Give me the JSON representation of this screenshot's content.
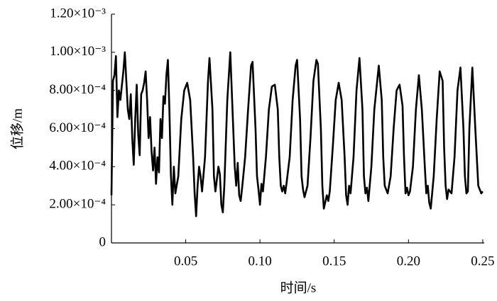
{
  "chart_data": {
    "type": "line",
    "xlabel": "时间/s",
    "ylabel": "位移/m",
    "x": [
      0,
      0.001,
      0.002,
      0.003,
      0.004,
      0.005,
      0.006,
      0.008,
      0.009,
      0.01,
      0.011,
      0.012,
      0.013,
      0.014,
      0.015,
      0.016,
      0.017,
      0.018,
      0.019,
      0.02,
      0.021,
      0.022,
      0.023,
      0.024,
      0.025,
      0.026,
      0.027,
      0.028,
      0.029,
      0.03,
      0.031,
      0.032,
      0.033,
      0.034,
      0.035,
      0.036,
      0.037,
      0.038,
      0.039,
      0.04,
      0.041,
      0.042,
      0.043,
      0.045,
      0.047,
      0.049,
      0.051,
      0.053,
      0.055,
      0.056,
      0.057,
      0.058,
      0.059,
      0.06,
      0.061,
      0.063,
      0.065,
      0.066,
      0.068,
      0.069,
      0.07,
      0.072,
      0.073,
      0.074,
      0.075,
      0.076,
      0.078,
      0.08,
      0.082,
      0.083,
      0.084,
      0.085,
      0.086,
      0.087,
      0.088,
      0.09,
      0.092,
      0.094,
      0.095,
      0.097,
      0.098,
      0.099,
      0.1,
      0.101,
      0.102,
      0.104,
      0.106,
      0.108,
      0.11,
      0.112,
      0.113,
      0.114,
      0.115,
      0.116,
      0.117,
      0.118,
      0.12,
      0.122,
      0.124,
      0.125,
      0.127,
      0.128,
      0.129,
      0.13,
      0.132,
      0.134,
      0.136,
      0.138,
      0.139,
      0.141,
      0.142,
      0.143,
      0.145,
      0.146,
      0.147,
      0.149,
      0.151,
      0.153,
      0.155,
      0.157,
      0.158,
      0.159,
      0.16,
      0.161,
      0.163,
      0.165,
      0.167,
      0.169,
      0.17,
      0.171,
      0.172,
      0.173,
      0.175,
      0.177,
      0.18,
      0.182,
      0.183,
      0.184,
      0.185,
      0.186,
      0.188,
      0.19,
      0.192,
      0.194,
      0.196,
      0.197,
      0.198,
      0.199,
      0.2,
      0.201,
      0.203,
      0.205,
      0.207,
      0.209,
      0.211,
      0.212,
      0.213,
      0.214,
      0.215,
      0.217,
      0.219,
      0.221,
      0.223,
      0.224,
      0.225,
      0.226,
      0.227,
      0.229,
      0.231,
      0.233,
      0.235,
      0.237,
      0.238,
      0.239,
      0.24,
      0.241,
      0.243,
      0.245,
      0.247,
      0.249,
      0.25
    ],
    "values": [
      0.00025,
      0.00085,
      0.00088,
      0.00098,
      0.00066,
      0.0008,
      0.00075,
      0.0009,
      0.001,
      0.00085,
      0.0007,
      0.00065,
      0.00078,
      0.00055,
      0.00041,
      0.00065,
      0.00083,
      0.00057,
      0.00046,
      0.00078,
      0.0008,
      0.00084,
      0.0009,
      0.00075,
      0.00055,
      0.00066,
      0.00048,
      0.00038,
      0.0005,
      0.00031,
      0.00045,
      0.00037,
      0.00065,
      0.00055,
      0.00077,
      0.00073,
      0.00088,
      0.00096,
      0.0007,
      0.00036,
      0.0002,
      0.0004,
      0.00026,
      0.00035,
      0.00065,
      0.0008,
      0.00084,
      0.00075,
      0.00045,
      0.00026,
      0.00014,
      0.0003,
      0.0004,
      0.00035,
      0.00027,
      0.00045,
      0.00085,
      0.00097,
      0.0007,
      0.00035,
      0.00027,
      0.0004,
      0.00036,
      0.0002,
      0.00016,
      0.0003,
      0.00075,
      0.001,
      0.0006,
      0.0004,
      0.0003,
      0.00042,
      0.00025,
      0.00022,
      0.00029,
      0.00045,
      0.0007,
      0.00093,
      0.00095,
      0.0006,
      0.00035,
      0.00028,
      0.0002,
      0.00031,
      0.00027,
      0.00045,
      0.0007,
      0.00082,
      0.00083,
      0.0007,
      0.00045,
      0.0003,
      0.00027,
      0.0003,
      0.00026,
      0.00032,
      0.00045,
      0.00075,
      0.00093,
      0.00096,
      0.00065,
      0.00035,
      0.00028,
      0.00024,
      0.0003,
      0.00055,
      0.00085,
      0.00096,
      0.00094,
      0.0006,
      0.0003,
      0.00018,
      0.00025,
      0.00022,
      0.00027,
      0.0005,
      0.00075,
      0.00084,
      0.00075,
      0.00045,
      0.00025,
      0.0002,
      0.0003,
      0.00026,
      0.00045,
      0.0008,
      0.00097,
      0.0007,
      0.00035,
      0.00026,
      0.00029,
      0.00022,
      0.0004,
      0.0007,
      0.00093,
      0.00075,
      0.00045,
      0.0003,
      0.00028,
      0.00026,
      0.00035,
      0.0006,
      0.0008,
      0.00083,
      0.00072,
      0.00045,
      0.00026,
      0.00029,
      0.00025,
      0.00027,
      0.0004,
      0.0007,
      0.00088,
      0.0007,
      0.0004,
      0.00026,
      0.0003,
      0.00021,
      0.00018,
      0.00035,
      0.00065,
      0.0009,
      0.00085,
      0.0005,
      0.0003,
      0.00023,
      0.00028,
      0.00026,
      0.00045,
      0.0008,
      0.00092,
      0.0006,
      0.00035,
      0.00026,
      0.00027,
      0.0006,
      0.00092,
      0.0006,
      0.0003,
      0.00026,
      0.00027
    ],
    "color": "#000000",
    "xlim": [
      0,
      0.251
    ],
    "xticks": [
      0.05,
      {
        "value": 0.1,
        "label": "0.10"
      },
      0.15,
      {
        "value": 0.2,
        "label": "0.20"
      },
      0.25
    ],
    "ylim": [
      0,
      0.0012
    ],
    "yticks": [
      0,
      {
        "value": 0.0002,
        "label": "2.00×10⁻⁴"
      },
      {
        "value": 0.0004,
        "label": "4.00×10⁻⁴"
      },
      {
        "value": 0.0006,
        "label": "6.00×10⁻⁴"
      },
      {
        "value": 0.0008,
        "label": "8.00×10⁻⁴"
      },
      {
        "value": 0.001,
        "label": "1.00×10⁻³"
      },
      {
        "value": 0.0012,
        "label": "1.20×10⁻³"
      }
    ]
  }
}
